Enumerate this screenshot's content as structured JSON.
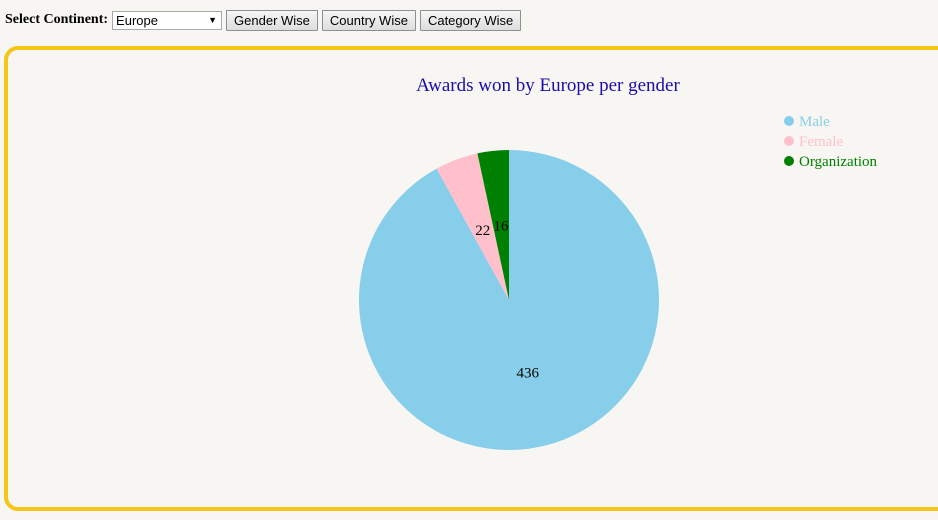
{
  "controls": {
    "label": "Select Continent:",
    "selected_continent": "Europe",
    "buttons": {
      "gender": "Gender Wise",
      "country": "Country Wise",
      "category": "Category Wise"
    }
  },
  "colors": {
    "title": "#1a0dab",
    "panel_border": "#f5c518",
    "male": "#87ceeb",
    "female": "#ffc0cb",
    "organization": "#008000"
  },
  "chart_data": {
    "type": "pie",
    "title": "Awards won by Europe per gender",
    "legend_position": "top-right",
    "slices": [
      {
        "label": "Male",
        "value": 436,
        "color": "#87ceeb"
      },
      {
        "label": "Female",
        "value": 22,
        "color": "#ffc0cb"
      },
      {
        "label": "Organization",
        "value": 16,
        "color": "#008000"
      }
    ]
  }
}
